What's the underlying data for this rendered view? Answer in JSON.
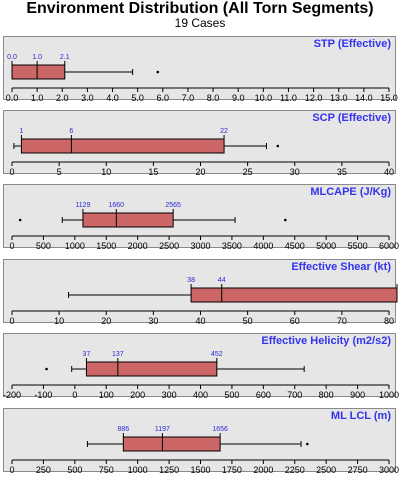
{
  "header": {
    "title": "Environment Distribution (All Torn Segments)",
    "subtitle": "19 Cases"
  },
  "colors": {
    "panel_bg": "#e6e6e6",
    "box_fill": "#cc6666",
    "box_stroke": "#000000",
    "value_label": "#2a2ad8",
    "panel_title": "#3333ee"
  },
  "chart_data": [
    {
      "type": "boxplot",
      "title": "STP (Effective)",
      "xlim": [
        0,
        15
      ],
      "ticks": [
        0,
        1,
        2,
        3,
        4,
        5,
        6,
        7,
        8,
        9,
        10,
        11,
        12,
        13,
        14,
        15
      ],
      "tick_labels": [
        "0.0",
        "1.0",
        "2.0",
        "3.0",
        "4.0",
        "5.0",
        "6.0",
        "7.0",
        "8.0",
        "9.0",
        "10.0",
        "11.0",
        "12.0",
        "13.0",
        "14.0",
        "15.0"
      ],
      "q1": 0.0,
      "median": 1.0,
      "q3": 2.1,
      "whisker_low": 0.0,
      "whisker_high": 4.8,
      "outliers": [
        5.8
      ],
      "labels": [
        "0.0",
        "1.0",
        "2.1"
      ]
    },
    {
      "type": "boxplot",
      "title": "SCP (Effective)",
      "xlim": [
        0,
        40
      ],
      "ticks": [
        0,
        5,
        10,
        15,
        20,
        25,
        30,
        35,
        40
      ],
      "tick_labels": [
        "0",
        "5",
        "10",
        "15",
        "20",
        "25",
        "30",
        "35",
        "40"
      ],
      "q1": 1,
      "median": 6.3,
      "q3": 22.5,
      "whisker_low": 0.2,
      "whisker_high": 27,
      "outliers": [
        28.2
      ],
      "labels": [
        "1",
        "6",
        "22"
      ]
    },
    {
      "type": "boxplot",
      "title": "MLCAPE (J/Kg)",
      "xlim": [
        0,
        6000
      ],
      "ticks": [
        0,
        500,
        1000,
        1500,
        2000,
        2500,
        3000,
        3500,
        4000,
        4500,
        5000,
        5500,
        6000
      ],
      "tick_labels": [
        "0",
        "500",
        "1000",
        "1500",
        "2000",
        "2500",
        "3000",
        "3500",
        "4000",
        "4500",
        "5000",
        "5500",
        "6000"
      ],
      "q1": 1129,
      "median": 1660,
      "q3": 2565,
      "whisker_low": 800,
      "whisker_high": 3550,
      "outliers": [
        130,
        4350
      ],
      "labels": [
        "1129",
        "1660",
        "2565"
      ]
    },
    {
      "type": "boxplot",
      "title": "Effective Shear (kt)",
      "xlim": [
        0,
        80
      ],
      "ticks": [
        0,
        10,
        20,
        30,
        40,
        50,
        60,
        70,
        80
      ],
      "tick_labels": [
        "0",
        "10",
        "20",
        "30",
        "40",
        "50",
        "60",
        "70",
        "80"
      ],
      "q1": 38,
      "median": 44.5,
      "q3": 82,
      "whisker_low": 12,
      "whisker_high": 82,
      "outliers": [],
      "labels": [
        "38",
        "44"
      ]
    },
    {
      "type": "boxplot",
      "title": "Effective Helicity (m2/s2)",
      "xlim": [
        -200,
        1000
      ],
      "ticks": [
        -200,
        -100,
        0,
        100,
        200,
        300,
        400,
        500,
        600,
        700,
        800,
        900,
        1000
      ],
      "tick_labels": [
        "-200",
        "-100",
        "0",
        "100",
        "200",
        "300",
        "400",
        "500",
        "600",
        "700",
        "800",
        "900",
        "1000"
      ],
      "q1": 37,
      "median": 137,
      "q3": 452,
      "whisker_low": -10,
      "whisker_high": 730,
      "outliers": [
        -90
      ],
      "labels": [
        "37",
        "137",
        "452"
      ]
    },
    {
      "type": "boxplot",
      "title": "ML LCL (m)",
      "xlim": [
        0,
        3000
      ],
      "ticks": [
        0,
        250,
        500,
        750,
        1000,
        1250,
        1500,
        1750,
        2000,
        2250,
        2500,
        2750,
        3000
      ],
      "tick_labels": [
        "0",
        "250",
        "500",
        "750",
        "1000",
        "1250",
        "1500",
        "1750",
        "2000",
        "2250",
        "2500",
        "2750",
        "3000"
      ],
      "q1": 886,
      "median": 1197,
      "q3": 1656,
      "whisker_low": 600,
      "whisker_high": 2300,
      "outliers": [
        2350
      ],
      "labels": [
        "886",
        "1197",
        "1656"
      ]
    }
  ]
}
